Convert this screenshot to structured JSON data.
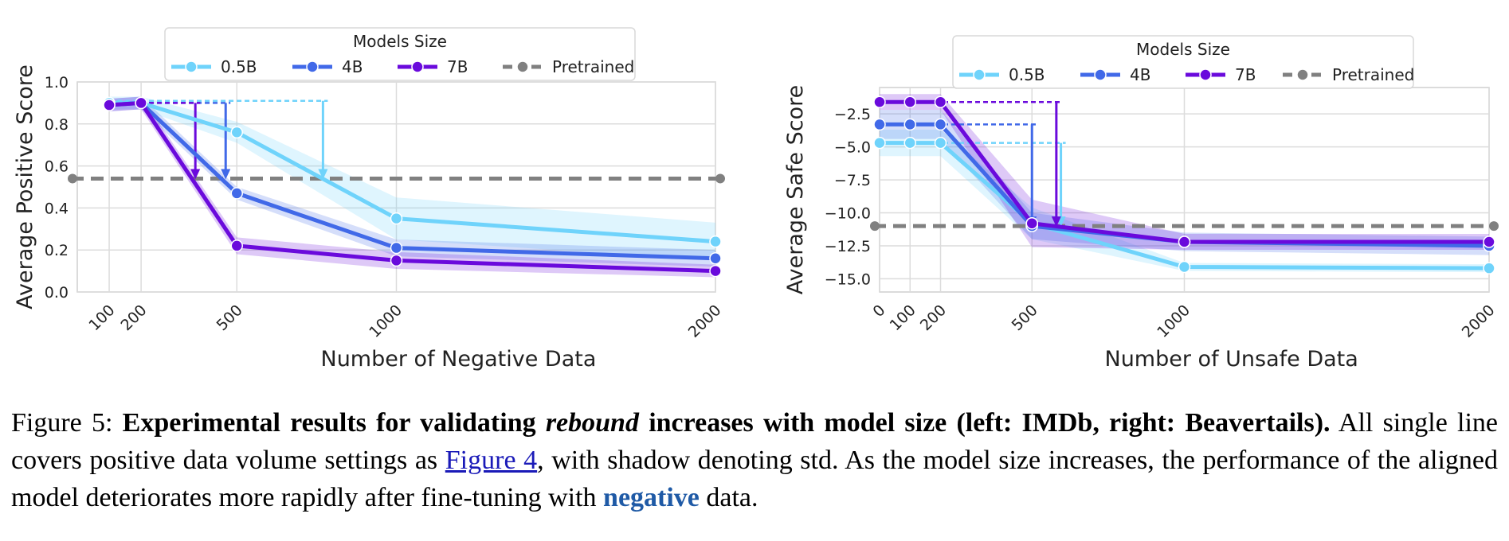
{
  "colors": {
    "0.5B": "#6fd3fb",
    "4B": "#4169e8",
    "7B": "#6a0adc",
    "Pretrained": "#808080"
  },
  "chart_data": [
    {
      "type": "line",
      "xlabel": "Number of Negative Data",
      "ylabel": "Average Positive Score",
      "x_ticks": [
        100,
        200,
        500,
        1000,
        2000
      ],
      "y_ticks": [
        0.0,
        0.2,
        0.4,
        0.6,
        0.8,
        1.0
      ],
      "y_tick_labels": [
        "0.0",
        "0.2",
        "0.4",
        "0.6",
        "0.8",
        "1.0"
      ],
      "xlim": [
        0,
        2000
      ],
      "ylim": [
        0.0,
        1.0
      ],
      "grid": true,
      "legend": {
        "title": "Models Size",
        "placement": "top-center",
        "entries": [
          "0.5B",
          "4B",
          "7B",
          "Pretrained"
        ]
      },
      "series": [
        {
          "name": "0.5B",
          "x": [
            100,
            200,
            500,
            1000,
            2000
          ],
          "y": [
            0.9,
            0.9,
            0.76,
            0.35,
            0.24
          ],
          "std": [
            0.03,
            0.03,
            0.05,
            0.1,
            0.09
          ]
        },
        {
          "name": "4B",
          "x": [
            100,
            200,
            500,
            1000,
            2000
          ],
          "y": [
            0.89,
            0.9,
            0.47,
            0.21,
            0.16
          ],
          "std": [
            0.03,
            0.03,
            0.03,
            0.04,
            0.04
          ]
        },
        {
          "name": "7B",
          "x": [
            100,
            200,
            500,
            1000,
            2000
          ],
          "y": [
            0.89,
            0.9,
            0.22,
            0.15,
            0.1
          ],
          "std": [
            0.03,
            0.03,
            0.04,
            0.04,
            0.03
          ]
        }
      ],
      "pretrained": 0.54,
      "rebound_arrows": [
        {
          "series": "0.5B",
          "x": 770,
          "from": 0.91,
          "to": 0.54
        },
        {
          "series": "4B",
          "x": 465,
          "from": 0.9,
          "to": 0.54
        },
        {
          "series": "7B",
          "x": 370,
          "from": 0.9,
          "to": 0.54
        }
      ]
    },
    {
      "type": "line",
      "xlabel": "Number of Unsafe Data",
      "ylabel": "Average Safe Score",
      "x_ticks": [
        0,
        100,
        200,
        500,
        1000,
        2000
      ],
      "y_ticks": [
        -2.5,
        -5.0,
        -7.5,
        -10.0,
        -12.5,
        -15.0
      ],
      "y_tick_labels": [
        "−2.5",
        "−5.0",
        "−7.5",
        "−10.0",
        "−12.5",
        "−15.0"
      ],
      "xlim": [
        0,
        2000
      ],
      "ylim": [
        -16.0,
        -0.5
      ],
      "grid": true,
      "legend": {
        "title": "Models Size",
        "placement": "top-center",
        "entries": [
          "0.5B",
          "4B",
          "7B",
          "Pretrained"
        ]
      },
      "series": [
        {
          "name": "0.5B",
          "x": [
            0,
            100,
            200,
            500,
            1000,
            2000
          ],
          "y": [
            -4.7,
            -4.7,
            -4.7,
            -10.8,
            -14.1,
            -14.2
          ],
          "std": [
            1.0,
            1.0,
            1.0,
            1.2,
            0.3,
            0.3
          ]
        },
        {
          "name": "4B",
          "x": [
            0,
            100,
            200,
            500,
            1000,
            2000
          ],
          "y": [
            -3.3,
            -3.3,
            -3.3,
            -11.0,
            -12.2,
            -12.5
          ],
          "std": [
            1.1,
            1.1,
            1.1,
            1.0,
            0.7,
            0.7
          ]
        },
        {
          "name": "7B",
          "x": [
            0,
            100,
            200,
            500,
            1000,
            2000
          ],
          "y": [
            -1.6,
            -1.6,
            -1.6,
            -10.8,
            -12.2,
            -12.2
          ],
          "std": [
            0.6,
            0.6,
            0.6,
            1.8,
            0.6,
            0.6
          ]
        }
      ],
      "pretrained": -11.0,
      "rebound_arrows": [
        {
          "series": "0.5B",
          "x": 595,
          "from": -4.7,
          "to": -11.0
        },
        {
          "series": "4B",
          "x": 500,
          "from": -3.3,
          "to": -11.0
        },
        {
          "series": "7B",
          "x": 580,
          "from": -1.6,
          "to": -11.0
        }
      ]
    }
  ],
  "caption": {
    "label": "Figure 5:",
    "bold_part1": "Experimental results for validating",
    "bold_italic": "rebound",
    "bold_part2": "increases with model size (left: IMDb, right: Beavertails).",
    "text1": "All single line covers positive data volume settings as",
    "link": "Figure 4",
    "text2": ", with shadow denoting std.  As the model size increases, the performance of the aligned model deteriorates more rapidly after fine-tuning with",
    "highlight": "negative",
    "text3": "data."
  }
}
